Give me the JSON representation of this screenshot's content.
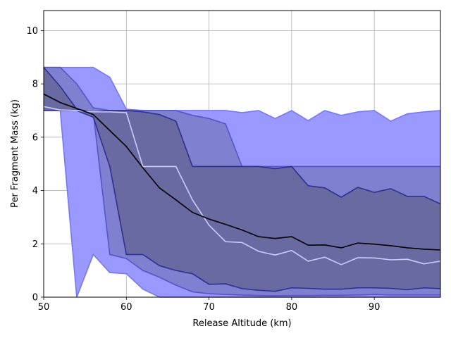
{
  "chart_data": {
    "type": "area",
    "xlabel": "Release Altitude (km)",
    "ylabel": "Per Fragment Mass (kg)",
    "xlim": [
      50,
      98
    ],
    "ylim": [
      0,
      10.75
    ],
    "xticks": [
      "50",
      "60",
      "70",
      "80",
      "90"
    ],
    "yticks": [
      "0",
      "2",
      "4",
      "6",
      "8",
      "10"
    ],
    "grid": true,
    "x": [
      50,
      52,
      54,
      56,
      58,
      60,
      62,
      64,
      66,
      68,
      70,
      72,
      74,
      76,
      78,
      80,
      82,
      84,
      86,
      88,
      90,
      92,
      94,
      96,
      98
    ],
    "bands": [
      {
        "role": "outer",
        "fill": "#9999ff",
        "edge": "#7777ee",
        "upper": [
          8.62,
          8.62,
          8.62,
          8.62,
          8.25,
          7.05,
          7.0,
          7.0,
          7.0,
          7.0,
          7.0,
          7.0,
          6.92,
          7.0,
          6.7,
          7.0,
          6.62,
          7.0,
          6.82,
          6.95,
          7.0,
          6.6,
          6.88,
          6.95,
          7.0
        ],
        "lower": [
          7.05,
          7.0,
          0.0,
          1.6,
          0.92,
          0.88,
          0.3,
          0.0,
          0.0,
          0.0,
          0.0,
          0.0,
          0.0,
          0.0,
          0.0,
          0.0,
          0.0,
          0.0,
          0.0,
          0.0,
          0.0,
          0.0,
          0.0,
          0.0,
          0.0
        ]
      },
      {
        "role": "middle",
        "fill": "#8080d0",
        "edge": "#5555c8",
        "upper": [
          8.62,
          8.62,
          8.0,
          7.1,
          7.0,
          7.0,
          7.0,
          7.0,
          7.0,
          6.82,
          6.7,
          6.5,
          4.9,
          4.9,
          4.9,
          4.9,
          4.9,
          4.9,
          4.9,
          4.9,
          4.9,
          4.9,
          4.9,
          4.9,
          4.9
        ],
        "lower": [
          7.1,
          7.0,
          7.0,
          6.9,
          1.6,
          1.45,
          1.0,
          0.75,
          0.45,
          0.2,
          0.13,
          0.1,
          0.08,
          0.06,
          0.05,
          0.06,
          0.06,
          0.07,
          0.07,
          0.08,
          0.1,
          0.08,
          0.08,
          0.08,
          0.08
        ]
      },
      {
        "role": "inner",
        "fill": "#6a6aa2",
        "edge": "#2f2f90",
        "upper": [
          8.62,
          7.9,
          7.05,
          6.95,
          7.0,
          7.0,
          6.95,
          6.85,
          6.6,
          4.9,
          4.9,
          4.9,
          4.9,
          4.9,
          4.82,
          4.9,
          4.18,
          4.1,
          3.75,
          4.12,
          3.93,
          4.07,
          3.78,
          3.78,
          3.5
        ],
        "lower": [
          7.0,
          7.0,
          7.0,
          6.75,
          4.9,
          1.6,
          1.6,
          1.18,
          1.0,
          0.88,
          0.48,
          0.5,
          0.32,
          0.26,
          0.22,
          0.35,
          0.33,
          0.3,
          0.3,
          0.35,
          0.35,
          0.33,
          0.28,
          0.35,
          0.32
        ]
      }
    ],
    "lines": [
      {
        "role": "median",
        "color": "#ccccff",
        "values": [
          7.15,
          7.02,
          7.0,
          6.95,
          6.95,
          6.92,
          4.9,
          4.9,
          4.9,
          3.65,
          2.7,
          2.08,
          2.05,
          1.72,
          1.58,
          1.75,
          1.35,
          1.5,
          1.22,
          1.48,
          1.47,
          1.4,
          1.42,
          1.25,
          1.35
        ]
      },
      {
        "role": "mean",
        "color": "#000000",
        "values": [
          7.62,
          7.3,
          7.08,
          6.85,
          6.25,
          5.65,
          4.85,
          4.1,
          3.65,
          3.18,
          2.93,
          2.73,
          2.52,
          2.27,
          2.2,
          2.27,
          1.95,
          1.96,
          1.85,
          2.03,
          1.99,
          1.93,
          1.85,
          1.8,
          1.77
        ]
      }
    ]
  }
}
